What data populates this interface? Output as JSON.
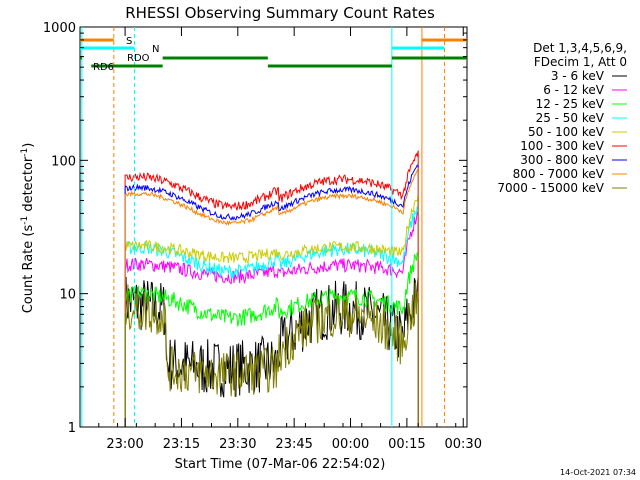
{
  "chart_data": {
    "type": "line",
    "title": "RHESSI Observing Summary Count Rates",
    "xlabel": "Start Time (07-Mar-06 22:54:02)",
    "ylabel_main": "Count Rate (s",
    "ylabel_sup1": "-1",
    "ylabel_mid": " detector",
    "ylabel_sup2": "-1",
    "ylabel_end": ")",
    "yscale": "log",
    "ylim": [
      1,
      1000
    ],
    "xlim_minutes_after_2254": [
      0,
      98
    ],
    "x_ticks": [
      {
        "m": 12,
        "label": "23:00"
      },
      {
        "m": 27,
        "label": "23:15"
      },
      {
        "m": 42,
        "label": "23:30"
      },
      {
        "m": 57,
        "label": "23:45"
      },
      {
        "m": 72,
        "label": "00:00"
      },
      {
        "m": 87,
        "label": "00:15"
      },
      {
        "m": 102,
        "label": "00:30"
      }
    ],
    "y_ticks": [
      {
        "v": 1,
        "label": "1"
      },
      {
        "v": 10,
        "label": "10"
      },
      {
        "v": 100,
        "label": "100"
      },
      {
        "v": 1000,
        "label": "1000"
      }
    ],
    "legend": {
      "placement": "right",
      "header1": "Det 1,3,4,5,6,9,",
      "header2": "FDecim 1, Att 0"
    },
    "series": [
      {
        "name": "3 - 6 keV",
        "color": "#000000",
        "profile": "low",
        "level": 5.5,
        "noise": 0.5
      },
      {
        "name": "6 - 12 keV",
        "color": "#ff00ff",
        "profile": "flat",
        "level": 16,
        "noise": 0.12
      },
      {
        "name": "12 - 25 keV",
        "color": "#00ff00",
        "profile": "mid",
        "level": 8.5,
        "noise": 0.15
      },
      {
        "name": "25 - 50 keV",
        "color": "#00ffff",
        "profile": "mid",
        "level": 19,
        "noise": 0.12
      },
      {
        "name": "50 - 100 keV",
        "color": "#cccc00",
        "profile": "flat",
        "level": 22,
        "noise": 0.1
      },
      {
        "name": "100 - 300 keV",
        "color": "#ff0000",
        "profile": "high",
        "level": 60,
        "noise": 0.08
      },
      {
        "name": "300 - 800 keV",
        "color": "#0000ff",
        "profile": "high",
        "level": 50,
        "noise": 0.05
      },
      {
        "name": "800 - 7000 keV",
        "color": "#ff8000",
        "profile": "high",
        "level": 45,
        "noise": 0.04
      },
      {
        "name": "7000 - 15000 keV",
        "color": "#808000",
        "profile": "low",
        "level": 5,
        "noise": 0.4
      }
    ],
    "flag_bars": [
      {
        "label": "S",
        "color": "#ff8000"
      },
      {
        "label": "N",
        "color": "#00ffff"
      },
      {
        "label": "RDO",
        "color": "#008000"
      },
      {
        "label": "RD6",
        "color": "#008000"
      }
    ]
  },
  "footer_timestamp": "14-Oct-2021 07:34"
}
